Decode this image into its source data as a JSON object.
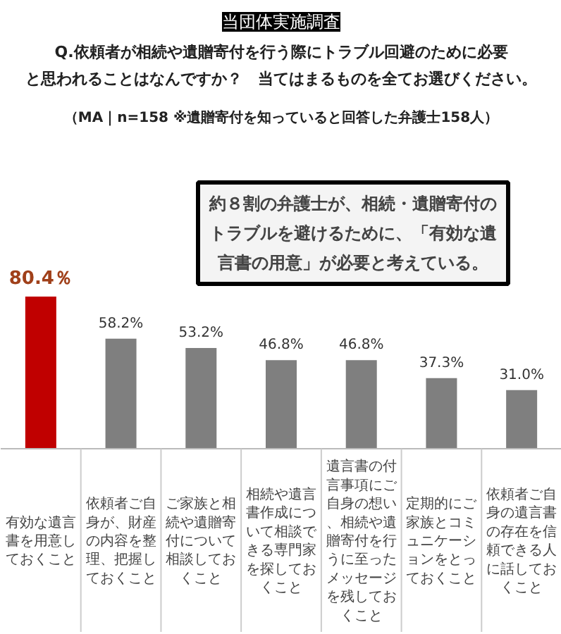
{
  "chart_data": {
    "type": "bar",
    "title": "Q.依頼者が相続や遺贈寄付を行う際にトラブル回避のために必要と思われることはなんですか？　当てはまるものを全てお選びください。",
    "subtitle": "（MA｜n=158 ※遺贈寄付を知っていると回答した弁護士158人）",
    "annotations": [
      "当団体実施調査",
      "約８割の弁護士が、相続・遺贈寄付のトラブルを避けるために、「有効な遺言書の用意」が必要と考えている。"
    ],
    "categories": [
      "有効な遺言書を用意しておくこと",
      "依頼者ご自身が、財産の内容を整理、把握しておくこと",
      "ご家族と相続や遺贈寄付について相談しておくこと",
      "相続や遺言書作成について相談できる専門家を探しておくこと",
      "遺言書の付言事項にご自身の想い、相続や遺贈寄付を行うに至ったメッセージを残しておくこと",
      "定期的にご家族とコミュニケーションをとっておくこと",
      "依頼者ご自身の遺言書の存在を信頼できる人に話しておくこと"
    ],
    "values": [
      80.4,
      58.2,
      53.2,
      46.8,
      46.8,
      37.3,
      31.0
    ],
    "value_labels": [
      "80.4％",
      "58.2%",
      "53.2%",
      "46.8%",
      "46.8%",
      "37.3%",
      "31.0%"
    ],
    "colors": [
      "#c00000",
      "#7f7f7f",
      "#7f7f7f",
      "#7f7f7f",
      "#7f7f7f",
      "#7f7f7f",
      "#7f7f7f"
    ],
    "data_labels": true
  }
}
